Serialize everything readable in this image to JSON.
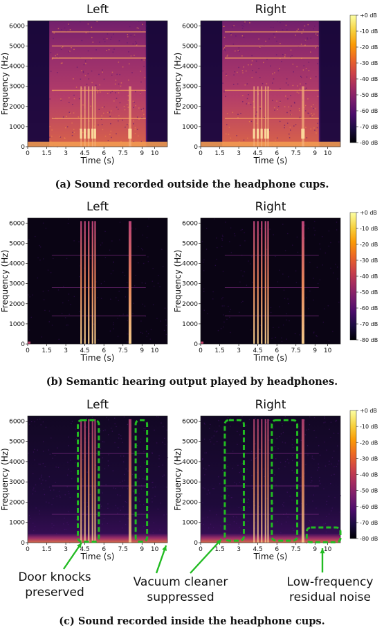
{
  "colors": {
    "colormap": [
      "#000004",
      "#1b0c41",
      "#4a0c6b",
      "#781c6d",
      "#a52c60",
      "#cf4446",
      "#ed6925",
      "#fb9b06",
      "#f7d13d",
      "#fcffa4"
    ],
    "annotation": "#22bb22"
  },
  "rows": [
    {
      "caption": "(a) Sound recorded outside the headphone cups.",
      "panels": [
        {
          "title": "Left"
        },
        {
          "title": "Right"
        }
      ]
    },
    {
      "caption": "(b) Semantic hearing output played by headphones.",
      "panels": [
        {
          "title": "Left"
        },
        {
          "title": "Right"
        }
      ]
    },
    {
      "caption": "(c) Sound recorded inside the headphone cups.",
      "panels": [
        {
          "title": "Left"
        },
        {
          "title": "Right"
        }
      ]
    }
  ],
  "axes": {
    "xlabel": "Time (s)",
    "ylabel": "Frequency (Hz)",
    "xticks": [
      "0",
      "1.5",
      "3",
      "4.5",
      "6",
      "7.5",
      "9",
      "10"
    ],
    "yticks": [
      "0",
      "1000",
      "2000",
      "3000",
      "4000",
      "5000",
      "6000"
    ]
  },
  "colorbar": {
    "ticks": [
      "+0 dB",
      "-10 dB",
      "-20 dB",
      "-30 dB",
      "-40 dB",
      "-50 dB",
      "-60 dB",
      "-70 dB",
      "-80 dB"
    ]
  },
  "annotations": {
    "door_knocks": [
      "Door knocks",
      "preserved"
    ],
    "vacuum": [
      "Vacuum cleaner",
      "suppressed"
    ],
    "low_freq": [
      "Low-frequency",
      "residual noise"
    ]
  },
  "chart_data": [
    {
      "type": "heatmap",
      "title": "Left",
      "xlabel": "Time (s)",
      "ylabel": "Frequency (Hz)",
      "xlim": [
        0,
        11
      ],
      "ylim": [
        0,
        6250
      ],
      "zlim_db": [
        -80,
        0
      ],
      "events": {
        "door_knocks_s": [
          4.2,
          4.5,
          4.8,
          5.1,
          5.3,
          8.0,
          8.1
        ],
        "vacuum_cleaner_s": [
          1.7,
          9.3
        ],
        "tones_hz": [
          1400,
          2800,
          4400,
          5000,
          5700
        ]
      }
    },
    {
      "type": "heatmap",
      "title": "Right",
      "xlabel": "Time (s)",
      "ylabel": "Frequency (Hz)",
      "xlim": [
        0,
        11
      ],
      "ylim": [
        0,
        6250
      ],
      "zlim_db": [
        -80,
        0
      ]
    },
    {
      "type": "heatmap",
      "title": "Left",
      "xlabel": "Time (s)",
      "ylabel": "Frequency (Hz)",
      "xlim": [
        0,
        11
      ],
      "ylim": [
        0,
        6250
      ],
      "zlim_db": [
        -80,
        0
      ]
    },
    {
      "type": "heatmap",
      "title": "Right",
      "xlabel": "Time (s)",
      "ylabel": "Frequency (Hz)",
      "xlim": [
        0,
        11
      ],
      "ylim": [
        0,
        6250
      ],
      "zlim_db": [
        -80,
        0
      ]
    },
    {
      "type": "heatmap",
      "title": "Left",
      "xlabel": "Time (s)",
      "ylabel": "Frequency (Hz)",
      "xlim": [
        0,
        11
      ],
      "ylim": [
        0,
        6250
      ],
      "zlim_db": [
        -80,
        0
      ]
    },
    {
      "type": "heatmap",
      "title": "Right",
      "xlabel": "Time (s)",
      "ylabel": "Frequency (Hz)",
      "xlim": [
        0,
        11
      ],
      "ylim": [
        0,
        6250
      ],
      "zlim_db": [
        -80,
        0
      ]
    }
  ]
}
